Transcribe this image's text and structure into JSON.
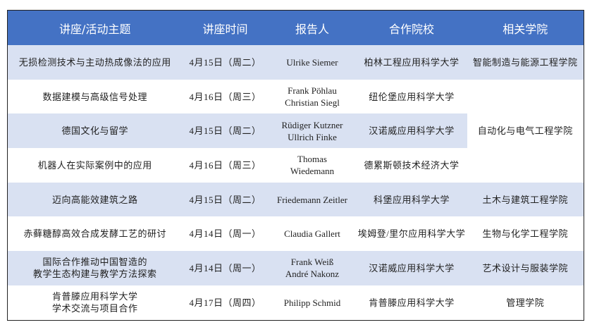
{
  "colors": {
    "header_bg": "#4472C4",
    "row_shade": "#D9E1F2"
  },
  "headers": [
    "讲座/活动主题",
    "讲座时间",
    "报告人",
    "合作院校",
    "相关学院"
  ],
  "rows": [
    {
      "topic": [
        "无损检测技术与主动热成像法的应用"
      ],
      "time": "4月15日（周二）",
      "speaker": [
        "Ulrike Siemer"
      ],
      "school": "柏林工程应用科学大学",
      "college": "智能制造与能源工程学院"
    },
    {
      "topic": [
        "数据建模与高级信号处理"
      ],
      "time": "4月16日（周三）",
      "speaker": [
        "Frank Pöhlau",
        "Christian Siegl"
      ],
      "school": "纽伦堡应用科学大学",
      "college": "自动化与电气工程学院"
    },
    {
      "topic": [
        "德国文化与留学"
      ],
      "time": "4月15日（周二）",
      "speaker": [
        "Rüdiger Kutzner",
        "Ullrich Finke"
      ],
      "school": "汉诺威应用科学大学"
    },
    {
      "topic": [
        "机器人在实际案例中的应用"
      ],
      "time": "4月16日（周三）",
      "speaker": [
        "Thomas",
        "Wiedemann"
      ],
      "school": "德累斯顿技术经济大学"
    },
    {
      "topic": [
        "迈向高能效建筑之路"
      ],
      "time": "4月15日（周二）",
      "speaker": [
        "Friedemann Zeitler"
      ],
      "school": "科堡应用科学大学",
      "college": "土木与建筑工程学院"
    },
    {
      "topic": [
        "赤藓糖醇高效合成发酵工艺的研讨"
      ],
      "time": "4月14日（周一）",
      "speaker": [
        "Claudia Gallert"
      ],
      "school": "埃姆登/里尔应用科学大学",
      "college": "生物与化学工程学院"
    },
    {
      "topic": [
        "国际合作推动中国智造的",
        "教学生态构建与教学方法探索"
      ],
      "time": "4月14日（周一）",
      "speaker": [
        "Frank Weiß",
        "André Nakonz"
      ],
      "school": "汉诺威应用科学大学",
      "college": "艺术设计与服装学院"
    },
    {
      "topic": [
        "肯普滕应用科学大学",
        "学术交流与项目合作"
      ],
      "time": "4月17日（周四）",
      "speaker": [
        "Philipp Schmid"
      ],
      "school": "肯普滕应用科学大学",
      "college": "管理学院"
    }
  ]
}
